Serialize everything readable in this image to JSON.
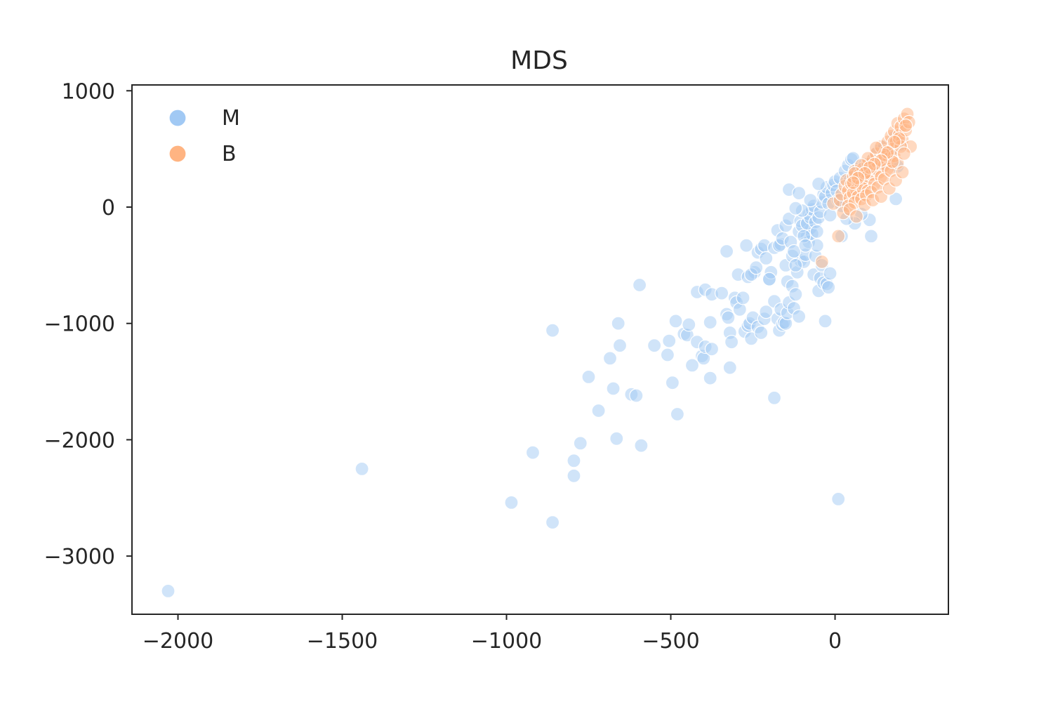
{
  "chart_data": {
    "type": "scatter",
    "title": "MDS",
    "xlabel": "",
    "ylabel": "",
    "xlim": [
      -2140,
      345
    ],
    "ylim": [
      -3500,
      1050
    ],
    "xticks": [
      -2000,
      -1500,
      -1000,
      -500,
      0
    ],
    "xtick_labels": [
      "−2000",
      "−1500",
      "−1000",
      "−500",
      "0"
    ],
    "yticks": [
      1000,
      0,
      -1000,
      -2000,
      -3000
    ],
    "ytick_labels": [
      "1000",
      "0",
      "−1000",
      "−2000",
      "−3000"
    ],
    "grid": false,
    "legend_position": "top-left",
    "series": [
      {
        "name": "M",
        "color": "#a1c9f4",
        "points": [
          [
            -2030,
            -3300
          ],
          [
            -1440,
            -2250
          ],
          [
            -985,
            -2540
          ],
          [
            -920,
            -2110
          ],
          [
            -860,
            -2710
          ],
          [
            -860,
            -1060
          ],
          [
            -795,
            -2180
          ],
          [
            -795,
            -2310
          ],
          [
            -775,
            -2030
          ],
          [
            -750,
            -1460
          ],
          [
            -720,
            -1750
          ],
          [
            -665,
            -1990
          ],
          [
            -660,
            -1000
          ],
          [
            -655,
            -1190
          ],
          [
            -685,
            -1300
          ],
          [
            -675,
            -1560
          ],
          [
            -620,
            -1610
          ],
          [
            -605,
            -1620
          ],
          [
            -590,
            -2050
          ],
          [
            -595,
            -670
          ],
          [
            -550,
            -1190
          ],
          [
            -510,
            -1270
          ],
          [
            -505,
            -1150
          ],
          [
            -495,
            -1510
          ],
          [
            -480,
            -1780
          ],
          [
            -485,
            -980
          ],
          [
            -460,
            -1090
          ],
          [
            -450,
            -1100
          ],
          [
            -445,
            -1010
          ],
          [
            -435,
            -1360
          ],
          [
            -420,
            -1160
          ],
          [
            -405,
            -1280
          ],
          [
            -400,
            -1300
          ],
          [
            -395,
            -1200
          ],
          [
            -380,
            -1470
          ],
          [
            -375,
            -1220
          ],
          [
            -380,
            -990
          ],
          [
            -420,
            -730
          ],
          [
            -395,
            -710
          ],
          [
            -375,
            -750
          ],
          [
            -345,
            -740
          ],
          [
            -330,
            -920
          ],
          [
            -325,
            -950
          ],
          [
            -320,
            -1380
          ],
          [
            -320,
            -1080
          ],
          [
            -315,
            -1160
          ],
          [
            -305,
            -780
          ],
          [
            -300,
            -820
          ],
          [
            -290,
            -880
          ],
          [
            -280,
            -780
          ],
          [
            -275,
            -1070
          ],
          [
            -265,
            -1020
          ],
          [
            -260,
            -1000
          ],
          [
            -255,
            -1130
          ],
          [
            -250,
            -950
          ],
          [
            -245,
            -560
          ],
          [
            -235,
            -1030
          ],
          [
            -225,
            -1080
          ],
          [
            -215,
            -960
          ],
          [
            -210,
            -900
          ],
          [
            -200,
            -620
          ],
          [
            -195,
            -560
          ],
          [
            -185,
            -810
          ],
          [
            -175,
            -960
          ],
          [
            -170,
            -1060
          ],
          [
            -165,
            -880
          ],
          [
            -160,
            -1010
          ],
          [
            -155,
            -990
          ],
          [
            -150,
            -1000
          ],
          [
            -145,
            -910
          ],
          [
            -330,
            -380
          ],
          [
            -295,
            -580
          ],
          [
            -270,
            -330
          ],
          [
            -265,
            -600
          ],
          [
            -255,
            -580
          ],
          [
            -240,
            -520
          ],
          [
            -235,
            -390
          ],
          [
            -225,
            -360
          ],
          [
            -215,
            -330
          ],
          [
            -210,
            -440
          ],
          [
            -200,
            -620
          ],
          [
            -185,
            -350
          ],
          [
            -175,
            -200
          ],
          [
            -165,
            -320
          ],
          [
            -150,
            -500
          ],
          [
            -145,
            -640
          ],
          [
            -140,
            -820
          ],
          [
            -130,
            -680
          ],
          [
            -125,
            -870
          ],
          [
            -120,
            -750
          ],
          [
            -115,
            -560
          ],
          [
            -110,
            -940
          ],
          [
            -105,
            -460
          ],
          [
            -95,
            -470
          ],
          [
            -90,
            -410
          ],
          [
            -85,
            -250
          ],
          [
            -80,
            -300
          ],
          [
            -75,
            -180
          ],
          [
            -70,
            -230
          ],
          [
            -65,
            -580
          ],
          [
            -60,
            -420
          ],
          [
            -55,
            -330
          ],
          [
            -50,
            -720
          ],
          [
            -45,
            -610
          ],
          [
            -40,
            -500
          ],
          [
            -35,
            -650
          ],
          [
            -30,
            -980
          ],
          [
            -25,
            -660
          ],
          [
            -20,
            -690
          ],
          [
            -15,
            -570
          ],
          [
            -170,
            -330
          ],
          [
            -160,
            -270
          ],
          [
            -150,
            -160
          ],
          [
            -140,
            -100
          ],
          [
            -135,
            -300
          ],
          [
            -130,
            -420
          ],
          [
            -125,
            -380
          ],
          [
            -120,
            -500
          ],
          [
            -110,
            -210
          ],
          [
            -105,
            -120
          ],
          [
            -100,
            -160
          ],
          [
            -95,
            -250
          ],
          [
            -90,
            -330
          ],
          [
            -85,
            -140
          ],
          [
            -80,
            -60
          ],
          [
            -75,
            -90
          ],
          [
            -70,
            -20
          ],
          [
            -65,
            10
          ],
          [
            -60,
            -130
          ],
          [
            -55,
            -210
          ],
          [
            -50,
            -90
          ],
          [
            -45,
            -40
          ],
          [
            -40,
            40
          ],
          [
            -35,
            110
          ],
          [
            -30,
            90
          ],
          [
            -25,
            170
          ],
          [
            -20,
            30
          ],
          [
            -15,
            -70
          ],
          [
            -10,
            120
          ],
          [
            -5,
            190
          ],
          [
            0,
            220
          ],
          [
            5,
            140
          ],
          [
            10,
            60
          ],
          [
            15,
            250
          ],
          [
            20,
            10
          ],
          [
            30,
            310
          ],
          [
            40,
            360
          ],
          [
            45,
            230
          ],
          [
            50,
            410
          ],
          [
            55,
            420
          ],
          [
            60,
            280
          ],
          [
            70,
            330
          ],
          [
            80,
            250
          ],
          [
            90,
            370
          ],
          [
            100,
            300
          ],
          [
            110,
            400
          ],
          [
            120,
            330
          ],
          [
            130,
            480
          ],
          [
            140,
            360
          ],
          [
            150,
            520
          ],
          [
            160,
            430
          ],
          [
            170,
            470
          ],
          [
            180,
            600
          ],
          [
            190,
            350
          ],
          [
            200,
            540
          ],
          [
            185,
            70
          ],
          [
            -140,
            150
          ],
          [
            -110,
            120
          ],
          [
            -75,
            60
          ],
          [
            -50,
            200
          ],
          [
            10,
            -2510
          ],
          [
            -185,
            -1640
          ],
          [
            105,
            -110
          ],
          [
            110,
            -250
          ],
          [
            80,
            -60
          ],
          [
            60,
            -140
          ],
          [
            35,
            -100
          ],
          [
            20,
            -250
          ],
          [
            -100,
            -30
          ],
          [
            -120,
            -10
          ]
        ]
      },
      {
        "name": "B",
        "color": "#ffb482",
        "points": [
          [
            -40,
            -470
          ],
          [
            10,
            -250
          ],
          [
            -5,
            30
          ],
          [
            15,
            60
          ],
          [
            20,
            110
          ],
          [
            30,
            180
          ],
          [
            35,
            230
          ],
          [
            40,
            140
          ],
          [
            45,
            80
          ],
          [
            50,
            200
          ],
          [
            55,
            260
          ],
          [
            60,
            310
          ],
          [
            65,
            150
          ],
          [
            70,
            230
          ],
          [
            75,
            280
          ],
          [
            80,
            190
          ],
          [
            85,
            330
          ],
          [
            90,
            250
          ],
          [
            95,
            300
          ],
          [
            100,
            370
          ],
          [
            105,
            220
          ],
          [
            110,
            280
          ],
          [
            115,
            410
          ],
          [
            120,
            330
          ],
          [
            125,
            460
          ],
          [
            130,
            380
          ],
          [
            135,
            300
          ],
          [
            140,
            520
          ],
          [
            145,
            430
          ],
          [
            150,
            360
          ],
          [
            155,
            480
          ],
          [
            160,
            560
          ],
          [
            165,
            420
          ],
          [
            170,
            610
          ],
          [
            175,
            500
          ],
          [
            180,
            650
          ],
          [
            185,
            560
          ],
          [
            190,
            720
          ],
          [
            195,
            620
          ],
          [
            200,
            690
          ],
          [
            205,
            580
          ],
          [
            210,
            760
          ],
          [
            215,
            660
          ],
          [
            220,
            800
          ],
          [
            225,
            730
          ],
          [
            230,
            520
          ],
          [
            55,
            120
          ],
          [
            70,
            90
          ],
          [
            85,
            160
          ],
          [
            100,
            140
          ],
          [
            120,
            200
          ],
          [
            140,
            260
          ],
          [
            160,
            330
          ],
          [
            180,
            440
          ],
          [
            200,
            520
          ],
          [
            40,
            10
          ],
          [
            60,
            40
          ],
          [
            80,
            70
          ],
          [
            95,
            100
          ],
          [
            110,
            130
          ],
          [
            130,
            170
          ],
          [
            150,
            240
          ],
          [
            170,
            310
          ],
          [
            190,
            380
          ],
          [
            210,
            460
          ],
          [
            25,
            -50
          ],
          [
            45,
            -20
          ],
          [
            65,
            -80
          ],
          [
            90,
            20
          ],
          [
            115,
            60
          ],
          [
            140,
            90
          ],
          [
            165,
            160
          ],
          [
            185,
            230
          ],
          [
            205,
            300
          ],
          [
            175,
            390
          ],
          [
            150,
            450
          ],
          [
            125,
            510
          ],
          [
            100,
            420
          ],
          [
            80,
            360
          ],
          [
            60,
            290
          ],
          [
            195,
            590
          ],
          [
            215,
            700
          ],
          [
            180,
            560
          ],
          [
            160,
            470
          ],
          [
            140,
            400
          ],
          [
            120,
            370
          ],
          [
            105,
            340
          ],
          [
            90,
            290
          ],
          [
            70,
            250
          ],
          [
            55,
            210
          ]
        ]
      }
    ]
  }
}
